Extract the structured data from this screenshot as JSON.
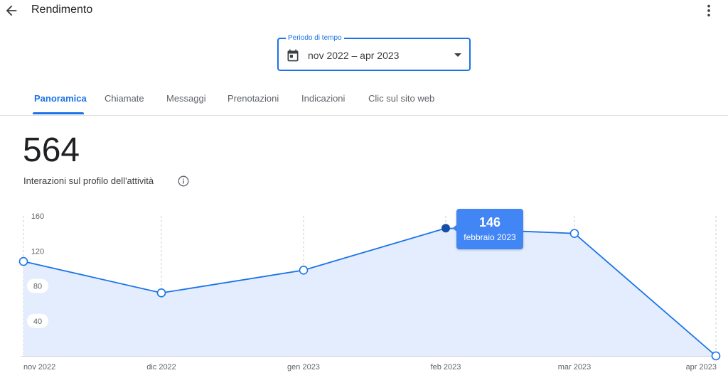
{
  "header": {
    "title": "Rendimento"
  },
  "period": {
    "label": "Periodo di tempo",
    "value": "nov 2022 – apr 2023"
  },
  "tabs": [
    {
      "label": "Panoramica",
      "active": true
    },
    {
      "label": "Chiamate",
      "active": false
    },
    {
      "label": "Messaggi",
      "active": false
    },
    {
      "label": "Prenotazioni",
      "active": false
    },
    {
      "label": "Indicazioni",
      "active": false
    },
    {
      "label": "Clic sul sito web",
      "active": false
    }
  ],
  "metric": {
    "value": "564",
    "label": "Interazioni sul profilo dell'attività"
  },
  "tooltip": {
    "value": "146",
    "label": "febbraio 2023"
  },
  "colors": {
    "accent": "#1a73e8",
    "line": "#1a73e8",
    "fill": "#e3edfd",
    "highlight": "#174ea6",
    "tooltip": "#4285f4"
  },
  "chart_data": {
    "type": "area",
    "x": [
      "nov 2022",
      "dic 2022",
      "gen 2023",
      "feb 2023",
      "mar 2023",
      "apr 2023"
    ],
    "series": [
      {
        "values": [
          108,
          72,
          98,
          146,
          140,
          0
        ]
      }
    ],
    "yticks": [
      "160",
      "120",
      "80",
      "40"
    ],
    "ylim": [
      0,
      160
    ],
    "highlighted_index": 3,
    "grid": "vertical dashed",
    "title": "",
    "xlabel": "",
    "ylabel": ""
  }
}
